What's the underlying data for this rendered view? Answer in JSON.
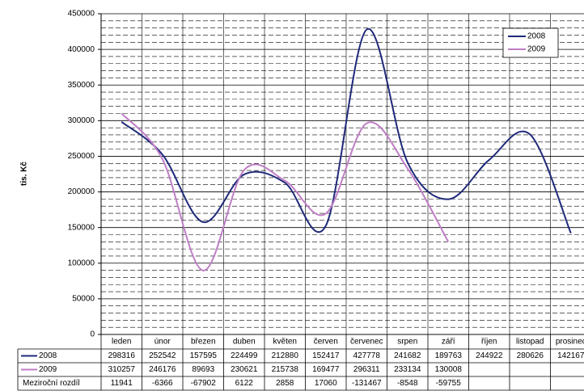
{
  "chart_data": {
    "type": "line",
    "y_label": "tis. Kč",
    "categories": [
      "leden",
      "únor",
      "březen",
      "duben",
      "květen",
      "červen",
      "červenec",
      "srpen",
      "září",
      "říjen",
      "listopad",
      "prosinec"
    ],
    "series": [
      {
        "name": "2008",
        "color": "#1f2a7a",
        "values": [
          298316,
          252542,
          157595,
          224499,
          212880,
          152417,
          427778,
          241682,
          189763,
          244922,
          280626,
          142167
        ]
      },
      {
        "name": "2009",
        "color": "#bf7ec6",
        "values": [
          310257,
          246176,
          89693,
          230621,
          215738,
          169477,
          296311,
          233134,
          130008,
          null,
          null,
          null
        ]
      }
    ],
    "difference": {
      "name": "Meziroční rozdíl",
      "values": [
        11941,
        -6366,
        -67902,
        6122,
        2858,
        17060,
        -131467,
        -8548,
        -59755,
        null,
        null,
        null
      ]
    },
    "ylim": [
      0,
      450000
    ],
    "yticks": [
      0,
      50000,
      100000,
      150000,
      200000,
      250000,
      300000,
      350000,
      400000,
      450000
    ],
    "grid": true,
    "minor_grid_divisions": 5,
    "smooth": true,
    "legend": "top-right"
  }
}
